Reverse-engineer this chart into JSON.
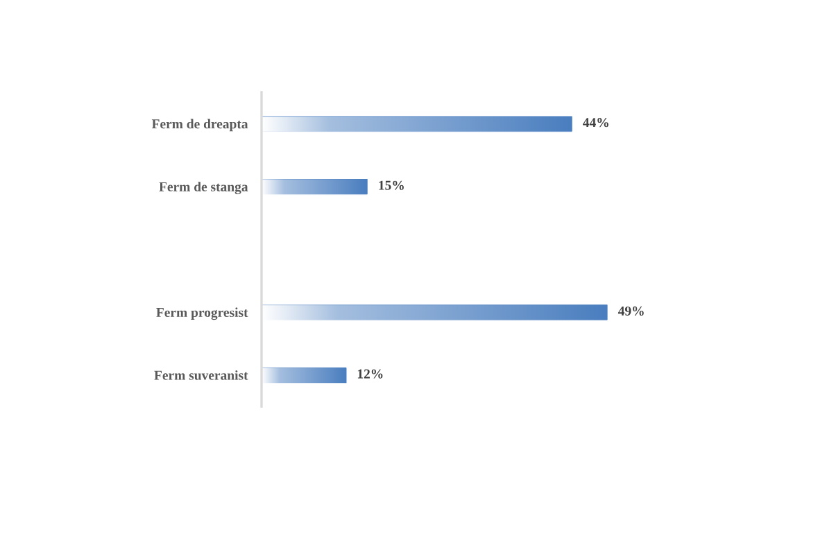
{
  "chart_data": {
    "type": "bar",
    "orientation": "horizontal",
    "categories": [
      "Ferm de dreapta",
      "Ferm de stanga",
      null,
      "Ferm progresist",
      "Ferm suveranist"
    ],
    "values": [
      44,
      15,
      null,
      49,
      12
    ],
    "value_labels": [
      "44%",
      "15%",
      null,
      "49%",
      "12%"
    ],
    "color": "#4a7ebf",
    "tick_labels": "y",
    "grid": false
  }
}
